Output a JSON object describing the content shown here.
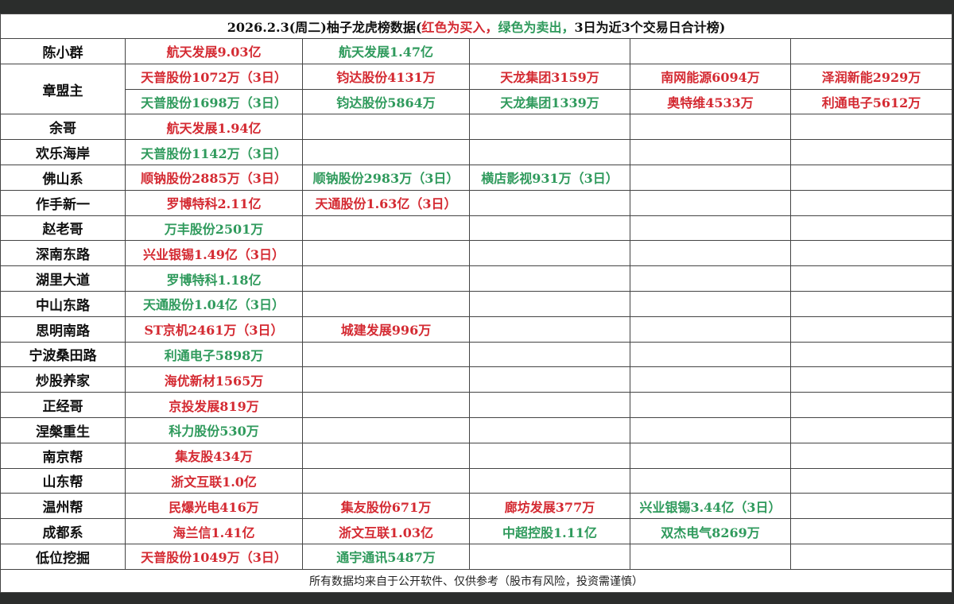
{
  "colors": {
    "buy": "#d42a32",
    "sell": "#2f9a5c"
  },
  "title": {
    "prefix": "2026.2.3(周二)柚子龙虎榜数据(",
    "buy_note": "红色为买入，",
    "sell_note": "绿色为卖出，",
    "suffix": "3日为近3个交易日合计榜)"
  },
  "rows": [
    {
      "name": "陈小群",
      "lines": [
        [
          {
            "t": "航天发展9.03亿",
            "c": "r"
          },
          {
            "t": "航天发展1.47亿",
            "c": "g"
          }
        ]
      ]
    },
    {
      "name": "章盟主",
      "lines": [
        [
          {
            "t": "天普股份1072万（3日）",
            "c": "r"
          },
          {
            "t": "钧达股份4131万",
            "c": "r"
          },
          {
            "t": "天龙集团3159万",
            "c": "r"
          },
          {
            "t": "南网能源6094万",
            "c": "r"
          },
          {
            "t": "泽润新能2929万",
            "c": "r"
          }
        ],
        [
          {
            "t": "天普股份1698万（3日）",
            "c": "g"
          },
          {
            "t": "钧达股份5864万",
            "c": "g"
          },
          {
            "t": "天龙集团1339万",
            "c": "g"
          },
          {
            "t": "奥特维4533万",
            "c": "r"
          },
          {
            "t": "利通电子5612万",
            "c": "r"
          }
        ]
      ]
    },
    {
      "name": "余哥",
      "lines": [
        [
          {
            "t": "航天发展1.94亿",
            "c": "r"
          }
        ]
      ]
    },
    {
      "name": "欢乐海岸",
      "lines": [
        [
          {
            "t": "天普股份1142万（3日）",
            "c": "g"
          }
        ]
      ]
    },
    {
      "name": "佛山系",
      "lines": [
        [
          {
            "t": "顺钠股份2885万（3日）",
            "c": "r"
          },
          {
            "t": "顺钠股份2983万（3日）",
            "c": "g"
          },
          {
            "t": "横店影视931万（3日）",
            "c": "g"
          }
        ]
      ]
    },
    {
      "name": "作手新一",
      "lines": [
        [
          {
            "t": "罗博特科2.11亿",
            "c": "r"
          },
          {
            "t": "天通股份1.63亿（3日）",
            "c": "r"
          }
        ]
      ]
    },
    {
      "name": "赵老哥",
      "lines": [
        [
          {
            "t": "万丰股份2501万",
            "c": "g"
          }
        ]
      ]
    },
    {
      "name": "深南东路",
      "lines": [
        [
          {
            "t": "兴业银锡1.49亿（3日）",
            "c": "r"
          }
        ]
      ]
    },
    {
      "name": "湖里大道",
      "lines": [
        [
          {
            "t": "罗博特科1.18亿",
            "c": "g"
          }
        ]
      ]
    },
    {
      "name": "中山东路",
      "lines": [
        [
          {
            "t": "天通股份1.04亿（3日）",
            "c": "g"
          }
        ]
      ]
    },
    {
      "name": "思明南路",
      "lines": [
        [
          {
            "t": "ST京机2461万（3日）",
            "c": "r"
          },
          {
            "t": "城建发展996万",
            "c": "r"
          }
        ]
      ]
    },
    {
      "name": "宁波桑田路",
      "lines": [
        [
          {
            "t": "利通电子5898万",
            "c": "g"
          }
        ]
      ]
    },
    {
      "name": "炒股养家",
      "lines": [
        [
          {
            "t": "海优新材1565万",
            "c": "r"
          }
        ]
      ]
    },
    {
      "name": "正经哥",
      "lines": [
        [
          {
            "t": "京投发展819万",
            "c": "r"
          }
        ]
      ]
    },
    {
      "name": "涅槃重生",
      "lines": [
        [
          {
            "t": "科力股份530万",
            "c": "g"
          }
        ]
      ]
    },
    {
      "name": "南京帮",
      "lines": [
        [
          {
            "t": "集友股434万",
            "c": "r"
          }
        ]
      ]
    },
    {
      "name": "山东帮",
      "lines": [
        [
          {
            "t": "浙文互联1.0亿",
            "c": "r"
          }
        ]
      ]
    },
    {
      "name": "温州帮",
      "lines": [
        [
          {
            "t": "民爆光电416万",
            "c": "r"
          },
          {
            "t": "集友股份671万",
            "c": "r"
          },
          {
            "t": "廊坊发展377万",
            "c": "r"
          },
          {
            "t": "兴业银锡3.44亿（3日）",
            "c": "g"
          }
        ]
      ]
    },
    {
      "name": "成都系",
      "lines": [
        [
          {
            "t": "海兰信1.41亿",
            "c": "r"
          },
          {
            "t": "浙文互联1.03亿",
            "c": "r"
          },
          {
            "t": "中超控股1.11亿",
            "c": "g"
          },
          {
            "t": "双杰电气8269万",
            "c": "g"
          }
        ]
      ]
    },
    {
      "name": "低位挖掘",
      "lines": [
        [
          {
            "t": "天普股份1049万（3日）",
            "c": "r"
          },
          {
            "t": "通宇通讯5487万",
            "c": "g"
          }
        ]
      ]
    }
  ],
  "footer": "所有数据均来自于公开软件、仅供参考（股市有风险，投资需谨慎）"
}
